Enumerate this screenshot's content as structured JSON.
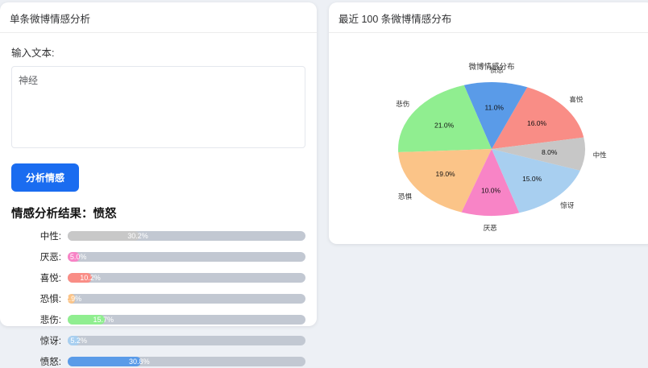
{
  "page": {
    "background": "#edf0f5"
  },
  "left_panel": {
    "title": "单条微博情感分析",
    "input_label": "输入文本:",
    "input_value": "神经",
    "analyze_button_label": "分析情感",
    "result_title": "情感分析结果：愤怒",
    "accent_color": "#1a6cf0",
    "track_color": "#c2c8d2",
    "bars": [
      {
        "label": "中性:",
        "value": 30.2,
        "display": "30.2%",
        "color": "#c8c8c8"
      },
      {
        "label": "厌恶:",
        "value": 5.0,
        "display": "5.0%",
        "color": "#f884c6"
      },
      {
        "label": "喜悦:",
        "value": 10.2,
        "display": "10.2%",
        "color": "#f98d86"
      },
      {
        "label": "恐惧:",
        "value": 2.9,
        "display": "2.9%",
        "color": "#fbc488"
      },
      {
        "label": "悲伤:",
        "value": 15.7,
        "display": "15.7%",
        "color": "#90ee90"
      },
      {
        "label": "惊讶:",
        "value": 5.2,
        "display": "5.2%",
        "color": "#a8cff0"
      },
      {
        "label": "愤怒:",
        "value": 30.8,
        "display": "30.8%",
        "color": "#5a9be8"
      }
    ]
  },
  "right_panel": {
    "title": "最近 100 条微博情感分布"
  },
  "chart_data": {
    "type": "pie",
    "title": "微博情感分布",
    "labels": [
      "喜悦",
      "愤怒",
      "悲伤",
      "恐惧",
      "厌恶",
      "惊讶",
      "中性"
    ],
    "values": [
      16.0,
      11.0,
      21.0,
      19.0,
      10.0,
      15.0,
      8.0
    ],
    "percent_labels": [
      "16.0%",
      "11.0%",
      "21.0%",
      "19.0%",
      "10.0%",
      "15.0%",
      "8.0%"
    ],
    "colors": [
      "#f98d86",
      "#5a9be8",
      "#90ee90",
      "#fbc488",
      "#f884c6",
      "#a8cff0",
      "#c7c7c7"
    ],
    "start_angle": 10,
    "direction": "counterclockwise",
    "label_distance": 1.16,
    "percent_distance": 0.62,
    "legend": false
  }
}
